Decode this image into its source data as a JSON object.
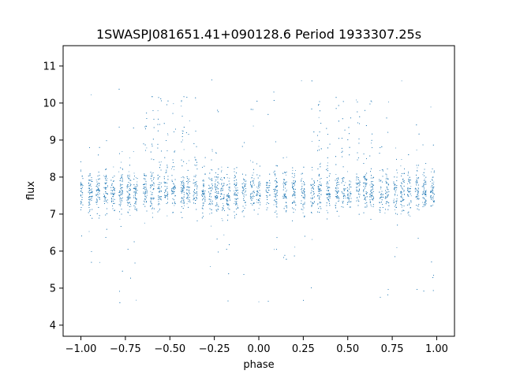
{
  "chart_data": {
    "type": "scatter",
    "title": "1SWASPJ081651.41+090128.6 Period 1933307.25s",
    "xlabel": "phase",
    "ylabel": "flux",
    "xlim": [
      -1.1,
      1.1
    ],
    "ylim": [
      3.7,
      11.55
    ],
    "xticks": [
      -1.0,
      -0.75,
      -0.5,
      -0.25,
      0.0,
      0.25,
      0.5,
      0.75,
      1.0
    ],
    "xtick_labels": [
      "−1.00",
      "−0.75",
      "−0.50",
      "−0.25",
      "0.00",
      "0.25",
      "0.50",
      "0.75",
      "1.00"
    ],
    "yticks": [
      4,
      5,
      6,
      7,
      8,
      9,
      10,
      11
    ],
    "ytick_labels": [
      "4",
      "5",
      "6",
      "7",
      "8",
      "9",
      "10",
      "11"
    ],
    "grid": false,
    "series": [
      {
        "color": "#1f77b4",
        "marker_size": 1,
        "baseline_flux": 7.6,
        "scatter_sigma": 0.28,
        "phase_range": [
          -1.0,
          1.0
        ],
        "approx_point_count": 7000,
        "high_flux_clusters_phase": [
          -0.62,
          -0.55,
          -0.38,
          0.38,
          0.45,
          0.62
        ],
        "flux_extremes": [
          4.1,
          11.25
        ]
      }
    ]
  }
}
